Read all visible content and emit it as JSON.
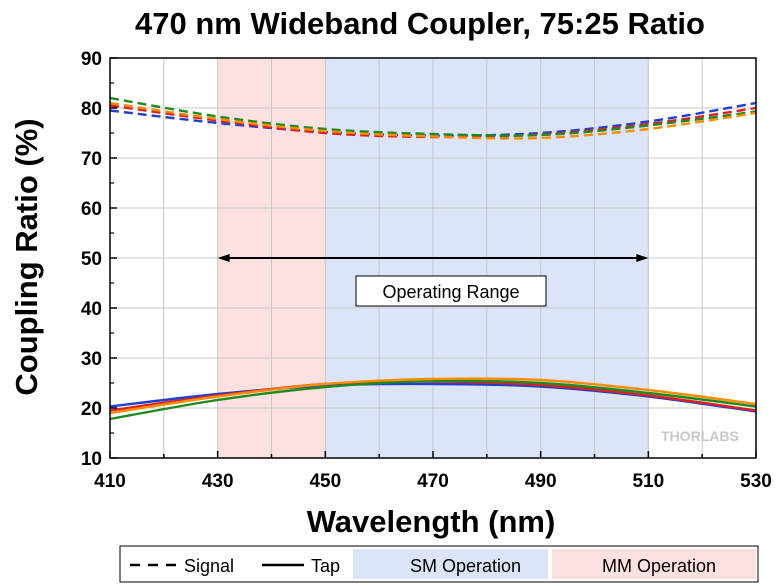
{
  "chart_data": {
    "type": "line",
    "title": "470 nm Wideband Coupler, 75:25 Ratio",
    "xlabel": "Wavelength (nm)",
    "ylabel": "Coupling Ratio (%)",
    "xlim": [
      410,
      530
    ],
    "ylim": [
      10,
      90
    ],
    "x_ticks": [
      410,
      430,
      450,
      470,
      490,
      510,
      530
    ],
    "x_minor_step": 10,
    "y_ticks": [
      10,
      20,
      30,
      40,
      50,
      60,
      70,
      80,
      90
    ],
    "grid": true,
    "shaded_regions": [
      {
        "name": "MM Operation",
        "x_range": [
          430,
          450
        ],
        "color": "#fde0e0"
      },
      {
        "name": "SM Operation",
        "x_range": [
          450,
          510
        ],
        "color": "#dce5f7"
      }
    ],
    "annotation": {
      "text": "Operating Range",
      "arrow_x": [
        430,
        510
      ],
      "arrow_y": 50
    },
    "series": [
      {
        "style": "dashed",
        "color": "#1f3fd1",
        "x": [
          410,
          430,
          450,
          470,
          490,
          510,
          530
        ],
        "y": [
          79.5,
          77.0,
          75.2,
          74.5,
          75.0,
          77.3,
          81.0
        ]
      },
      {
        "style": "dashed",
        "color": "#e02020",
        "x": [
          410,
          430,
          450,
          470,
          490,
          510,
          530
        ],
        "y": [
          80.5,
          77.5,
          75.0,
          74.2,
          74.7,
          76.8,
          80.0
        ]
      },
      {
        "style": "dashed",
        "color": "#1f8a1f",
        "x": [
          410,
          430,
          450,
          470,
          490,
          510,
          530
        ],
        "y": [
          82.0,
          78.3,
          75.8,
          74.8,
          74.6,
          76.5,
          79.3
        ]
      },
      {
        "style": "dashed",
        "color": "#ff8c00",
        "x": [
          410,
          430,
          450,
          470,
          490,
          510,
          530
        ],
        "y": [
          81.0,
          77.8,
          75.4,
          74.3,
          74.0,
          75.8,
          79.0
        ]
      },
      {
        "style": "solid",
        "color": "#1f3fd1",
        "x": [
          410,
          430,
          450,
          470,
          490,
          510,
          530
        ],
        "y": [
          20.3,
          22.8,
          24.5,
          24.8,
          24.3,
          22.3,
          19.3
        ]
      },
      {
        "style": "solid",
        "color": "#e02020",
        "x": [
          410,
          430,
          450,
          470,
          490,
          510,
          530
        ],
        "y": [
          19.5,
          22.5,
          24.8,
          25.3,
          24.6,
          22.5,
          19.5
        ]
      },
      {
        "style": "solid",
        "color": "#1f8a1f",
        "x": [
          410,
          430,
          450,
          470,
          490,
          510,
          530
        ],
        "y": [
          17.8,
          21.6,
          24.2,
          25.4,
          25.0,
          23.0,
          20.3
        ]
      },
      {
        "style": "solid",
        "color": "#ff8c00",
        "x": [
          410,
          430,
          450,
          470,
          490,
          510,
          530
        ],
        "y": [
          19.0,
          22.3,
          24.8,
          25.8,
          25.6,
          23.6,
          20.8
        ]
      }
    ],
    "legend": {
      "placement": "bottom",
      "items": [
        {
          "label": "Signal",
          "kind": "dashed-line"
        },
        {
          "label": "Tap",
          "kind": "solid-line"
        },
        {
          "label": "SM Operation",
          "kind": "swatch",
          "color": "#dce5f7"
        },
        {
          "label": "MM Operation",
          "kind": "swatch",
          "color": "#fde0e0"
        }
      ]
    }
  },
  "watermark": "THORLABS"
}
